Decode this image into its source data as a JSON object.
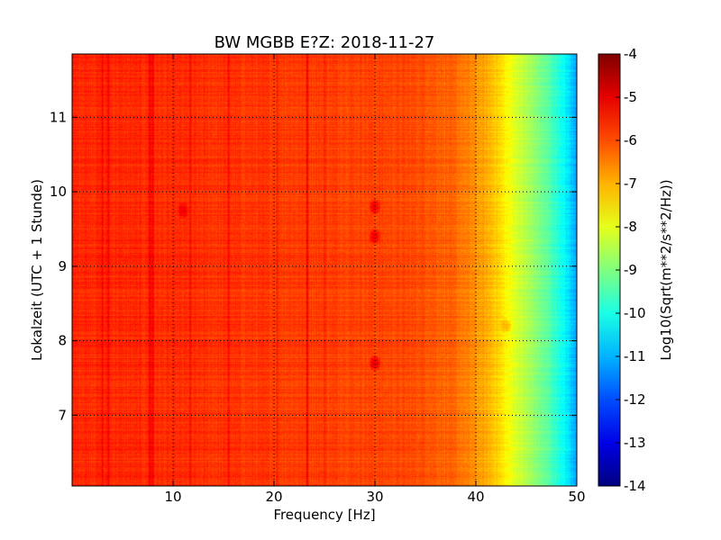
{
  "chart_data": {
    "type": "heatmap",
    "title": "BW MGBB E?Z: 2018-11-27",
    "xlabel": "Frequency [Hz]",
    "ylabel": "Lokalzeit (UTC + 1 Stunde)",
    "xlim": [
      0,
      50
    ],
    "ylim": [
      11.85,
      6.05
    ],
    "x_ticks": [
      "10",
      "20",
      "30",
      "40",
      "50"
    ],
    "y_ticks": [
      "7",
      "8",
      "9",
      "10",
      "11"
    ],
    "grid": true,
    "colormap": "jet",
    "colorbar": {
      "label": "Log10(Sqrt(m**2/s**2/Hz))",
      "range": [
        -14,
        -4
      ],
      "ticks": [
        "-4",
        "-5",
        "-6",
        "-7",
        "-8",
        "-9",
        "-10",
        "-11",
        "-12",
        "-13",
        "-14"
      ]
    },
    "value_profile_by_frequency": {
      "x": [
        0,
        5,
        10,
        15,
        20,
        25,
        30,
        35,
        38,
        40,
        42,
        43,
        44,
        45,
        46,
        47,
        48,
        49,
        50
      ],
      "values": [
        -5.6,
        -5.65,
        -5.7,
        -5.75,
        -5.8,
        -5.85,
        -5.9,
        -6.0,
        -6.3,
        -6.7,
        -7.2,
        -7.7,
        -8.1,
        -8.5,
        -8.9,
        -9.3,
        -9.8,
        -10.4,
        -11.2
      ]
    },
    "vertical_lines_hz": [
      {
        "x": 3.0,
        "delta": 0.4
      },
      {
        "x": 3.6,
        "delta": 0.5
      },
      {
        "x": 7.7,
        "delta": 0.7
      },
      {
        "x": 8.0,
        "delta": 0.6
      },
      {
        "x": 11.7,
        "delta": 0.35
      },
      {
        "x": 15.5,
        "delta": 0.55
      },
      {
        "x": 20.3,
        "delta": 0.3
      },
      {
        "x": 23.3,
        "delta": 0.8
      },
      {
        "x": 25.0,
        "delta": 0.3
      }
    ],
    "hotspots": [
      {
        "x": 30.0,
        "y": 7.7,
        "delta": 0.9
      },
      {
        "x": 30.0,
        "y": 9.4,
        "delta": 0.8
      },
      {
        "x": 30.0,
        "y": 9.8,
        "delta": 0.8
      },
      {
        "x": 11.0,
        "y": 9.75,
        "delta": 0.6
      },
      {
        "x": 43.0,
        "y": 8.2,
        "delta": 0.6
      }
    ]
  }
}
